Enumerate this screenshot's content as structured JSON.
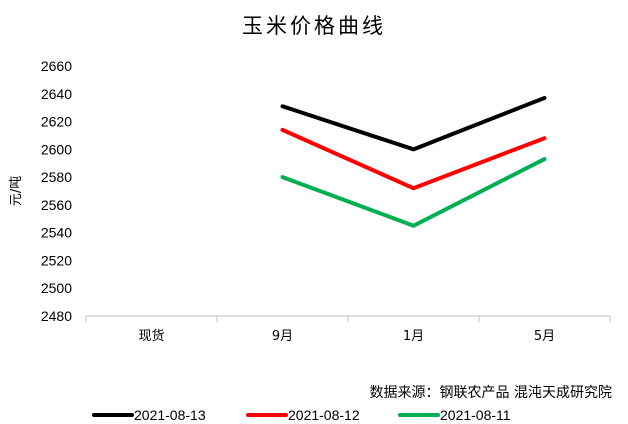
{
  "chart_data": {
    "type": "line",
    "title": "玉米价格曲线",
    "ylabel": "元/吨",
    "xlabel": "",
    "categories": [
      "现货",
      "9月",
      "1月",
      "5月"
    ],
    "ylim": [
      2480,
      2660
    ],
    "yticks": [
      2480,
      2500,
      2520,
      2540,
      2560,
      2580,
      2600,
      2620,
      2640,
      2660
    ],
    "grid": false,
    "legend_position": "bottom",
    "series": [
      {
        "name": "2021-08-13",
        "color": "#000000",
        "values": [
          null,
          2631,
          2600,
          2637
        ]
      },
      {
        "name": "2021-08-12",
        "color": "#ff0000",
        "values": [
          null,
          2614,
          2572,
          2608
        ]
      },
      {
        "name": "2021-08-11",
        "color": "#00b050",
        "values": [
          null,
          2580,
          2545,
          2593
        ]
      }
    ],
    "source": "数据来源：钢联农产品 混沌天成研究院"
  }
}
